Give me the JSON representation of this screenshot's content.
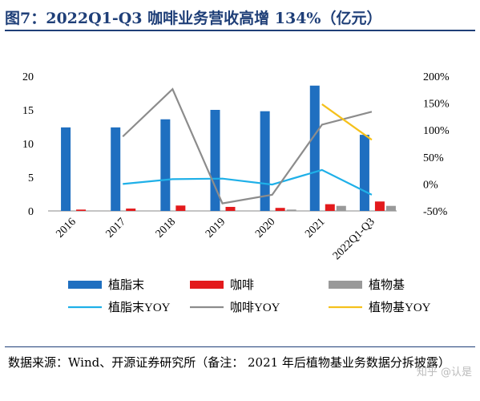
{
  "title": "图7：2022Q1-Q3 咖啡业务营收高增 134%（亿元）",
  "source": "数据来源：Wind、开源证券研究所（备注： 2021 年后植物基业务数据分拆披露）",
  "watermark": "知乎 @认是",
  "chart_data": {
    "type": "bar",
    "categories": [
      "2016",
      "2017",
      "2018",
      "2019",
      "2020",
      "2021",
      "2022Q1-Q3"
    ],
    "y_left": {
      "ylim": [
        0,
        20
      ],
      "ticks": [
        0,
        5,
        10,
        15,
        20
      ]
    },
    "y_right": {
      "ylim": [
        -0.5,
        2.0
      ],
      "ticks": [
        -0.5,
        0,
        0.5,
        1.0,
        1.5,
        2.0
      ],
      "tick_labels": [
        "-50%",
        "0%",
        "50%",
        "100%",
        "150%",
        "200%"
      ]
    },
    "bar_series": [
      {
        "name": "植脂末",
        "color": "#1f6fc0",
        "values": [
          12.4,
          12.4,
          13.6,
          15.0,
          14.8,
          18.6,
          11.3
        ]
      },
      {
        "name": "咖啡",
        "color": "#e31a1c",
        "values": [
          0.2,
          0.35,
          0.8,
          0.6,
          0.45,
          1.0,
          1.4
        ]
      },
      {
        "name": "植物基",
        "color": "#999999",
        "values": [
          null,
          null,
          null,
          null,
          0.2,
          0.75,
          0.75
        ]
      }
    ],
    "line_series": [
      {
        "name": "植脂末YOY",
        "color": "#1fb0e8",
        "values": [
          null,
          0.0,
          0.09,
          0.1,
          -0.01,
          0.26,
          -0.2
        ]
      },
      {
        "name": "咖啡YOY",
        "color": "#8c8c8c",
        "values": [
          null,
          0.88,
          1.76,
          -0.36,
          -0.2,
          1.1,
          1.34
        ]
      },
      {
        "name": "植物基YOY",
        "color": "#f5c11c",
        "values": [
          null,
          null,
          null,
          null,
          null,
          1.48,
          0.82
        ]
      }
    ],
    "legend_position": "bottom",
    "grid": false
  }
}
